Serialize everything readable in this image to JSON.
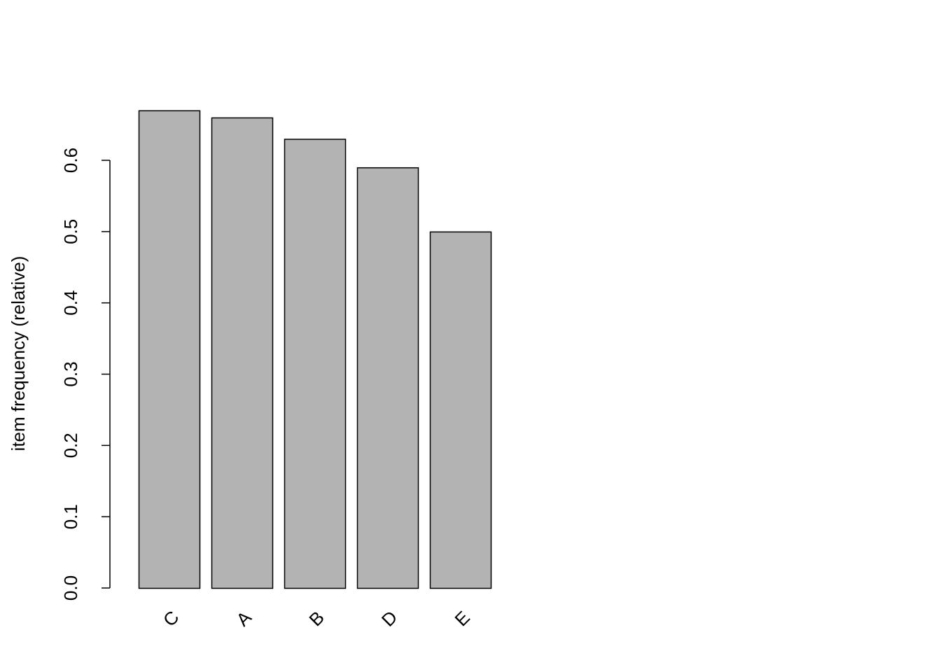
{
  "chart_data": {
    "type": "bar",
    "title": "",
    "xlabel": "",
    "ylabel": "item frequency (relative)",
    "categories": [
      "C",
      "A",
      "B",
      "D",
      "E"
    ],
    "values": [
      0.67,
      0.66,
      0.63,
      0.59,
      0.5
    ],
    "ylim": [
      0,
      0.67
    ],
    "yticks": [
      "0.0",
      "0.1",
      "0.2",
      "0.3",
      "0.4",
      "0.5",
      "0.6"
    ],
    "ytick_values": [
      0,
      0.1,
      0.2,
      0.3,
      0.4,
      0.5,
      0.6
    ],
    "grid": false,
    "bar_color": "#b3b3b3",
    "bar_border_color": "#000000",
    "x_label_rotation_deg": 45
  }
}
